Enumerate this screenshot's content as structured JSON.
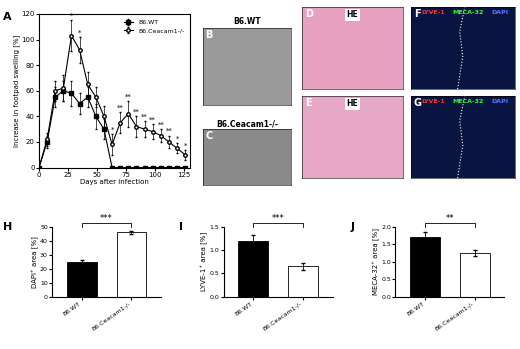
{
  "chart_data": [
    {
      "panel": "A",
      "type": "line",
      "x_label": "Days after infection",
      "y_label": "Increase in footpad swelling [%]",
      "x": [
        0,
        7,
        14,
        21,
        28,
        35,
        42,
        49,
        56,
        63,
        70,
        77,
        84,
        91,
        98,
        105,
        112,
        119,
        126
      ],
      "series": [
        {
          "name": "B6.WT",
          "color": "#000000",
          "marker": "square",
          "line_style": "solid",
          "values": [
            0,
            20,
            55,
            60,
            58,
            50,
            55,
            40,
            30,
            0,
            0,
            0,
            0,
            0,
            0,
            0,
            0,
            0,
            0
          ],
          "errors": [
            0,
            5,
            8,
            8,
            10,
            8,
            8,
            10,
            8,
            0,
            0,
            0,
            0,
            0,
            0,
            0,
            0,
            0,
            0
          ]
        },
        {
          "name": "B6.Ceacam1-/-",
          "color": "#000000",
          "marker": "open_circle",
          "line_style": "solid",
          "values": [
            0,
            22,
            60,
            62,
            103,
            92,
            65,
            55,
            40,
            18,
            35,
            42,
            32,
            30,
            28,
            25,
            20,
            15,
            10
          ],
          "errors": [
            0,
            5,
            8,
            10,
            12,
            10,
            10,
            8,
            8,
            8,
            8,
            10,
            8,
            6,
            6,
            5,
            5,
            4,
            4
          ]
        }
      ],
      "annotations": [
        {
          "x": 28,
          "text": "*"
        },
        {
          "x": 35,
          "text": "*"
        },
        {
          "x": 63,
          "text": "*"
        },
        {
          "x": 70,
          "text": "**"
        },
        {
          "x": 77,
          "text": "**"
        },
        {
          "x": 84,
          "text": "**"
        },
        {
          "x": 91,
          "text": "**"
        },
        {
          "x": 98,
          "text": "**"
        },
        {
          "x": 105,
          "text": "**"
        },
        {
          "x": 112,
          "text": "**"
        },
        {
          "x": 119,
          "text": "*"
        },
        {
          "x": 126,
          "text": "*"
        }
      ],
      "xlim": [
        0,
        130
      ],
      "xticks": [
        0,
        25,
        50,
        75,
        100,
        125
      ],
      "ylim": [
        0,
        120
      ],
      "yticks": [
        0,
        20,
        40,
        60,
        80,
        100,
        120
      ],
      "legend": "upper right"
    },
    {
      "panel": "H",
      "type": "bar",
      "y_label": "DAPI⁺ area [%]",
      "categories": [
        "B6.WT",
        "B6.Ceacam1-/-"
      ],
      "values": [
        25,
        46
      ],
      "errors": [
        1.5,
        1.0
      ],
      "colors": [
        "#000000",
        "#ffffff"
      ],
      "significance": "***",
      "ylim": [
        0,
        50
      ],
      "yticks": [
        0,
        10,
        20,
        30,
        40,
        50
      ]
    },
    {
      "panel": "I",
      "type": "bar",
      "y_label": "LYVE-1⁺ area [%]",
      "categories": [
        "B6.WT",
        "B6.Ceacam1-/-"
      ],
      "values": [
        1.2,
        0.65
      ],
      "errors": [
        0.12,
        0.08
      ],
      "colors": [
        "#000000",
        "#ffffff"
      ],
      "significance": "***",
      "ylim": [
        0,
        1.5
      ],
      "yticks": [
        {
          "value": 0,
          "label": "0.0"
        },
        {
          "value": 0.5,
          "label": "0.5"
        },
        {
          "value": 1.0,
          "label": "1.0"
        },
        {
          "value": 1.5,
          "label": "1.5"
        }
      ]
    },
    {
      "panel": "J",
      "type": "bar",
      "y_label": "MECA-32⁺ area [%]",
      "categories": [
        "B6.WT",
        "B6.Ceacam1-/-"
      ],
      "values": [
        1.72,
        1.25
      ],
      "errors": [
        0.12,
        0.08
      ],
      "colors": [
        "#000000",
        "#ffffff"
      ],
      "significance": "**",
      "ylim": [
        0,
        2.0
      ],
      "yticks": [
        {
          "value": 0,
          "label": "0.0"
        },
        {
          "value": 0.5,
          "label": "0.5"
        },
        {
          "value": 1.0,
          "label": "1.0"
        },
        {
          "value": 1.5,
          "label": "1.5"
        },
        {
          "value": 2.0,
          "label": "2.0"
        }
      ]
    }
  ],
  "image_panels": [
    {
      "panel": "B",
      "caption": "B6.WT",
      "color": "#9a9a9a"
    },
    {
      "panel": "C",
      "caption": "B6.Ceacam1-/-",
      "color": "#8a8a8a"
    },
    {
      "panel": "D",
      "caption": "HE",
      "color": "#e8a0c0"
    },
    {
      "panel": "E",
      "caption": "HE",
      "color": "#e6a8c6"
    },
    {
      "panel": "F",
      "color": "#0a1440",
      "stains": [
        {
          "name": "LYVE-1",
          "color": "#ff3030"
        },
        {
          "name": "MECA-32",
          "color": "#30ff30"
        },
        {
          "name": "DAPI",
          "color": "#5a78ff"
        }
      ]
    },
    {
      "panel": "G",
      "color": "#0a1440",
      "stains": [
        {
          "name": "LYVE-1",
          "color": "#ff3030"
        },
        {
          "name": "MECA-32",
          "color": "#30ff30"
        },
        {
          "name": "DAPI",
          "color": "#5a78ff"
        }
      ]
    }
  ]
}
